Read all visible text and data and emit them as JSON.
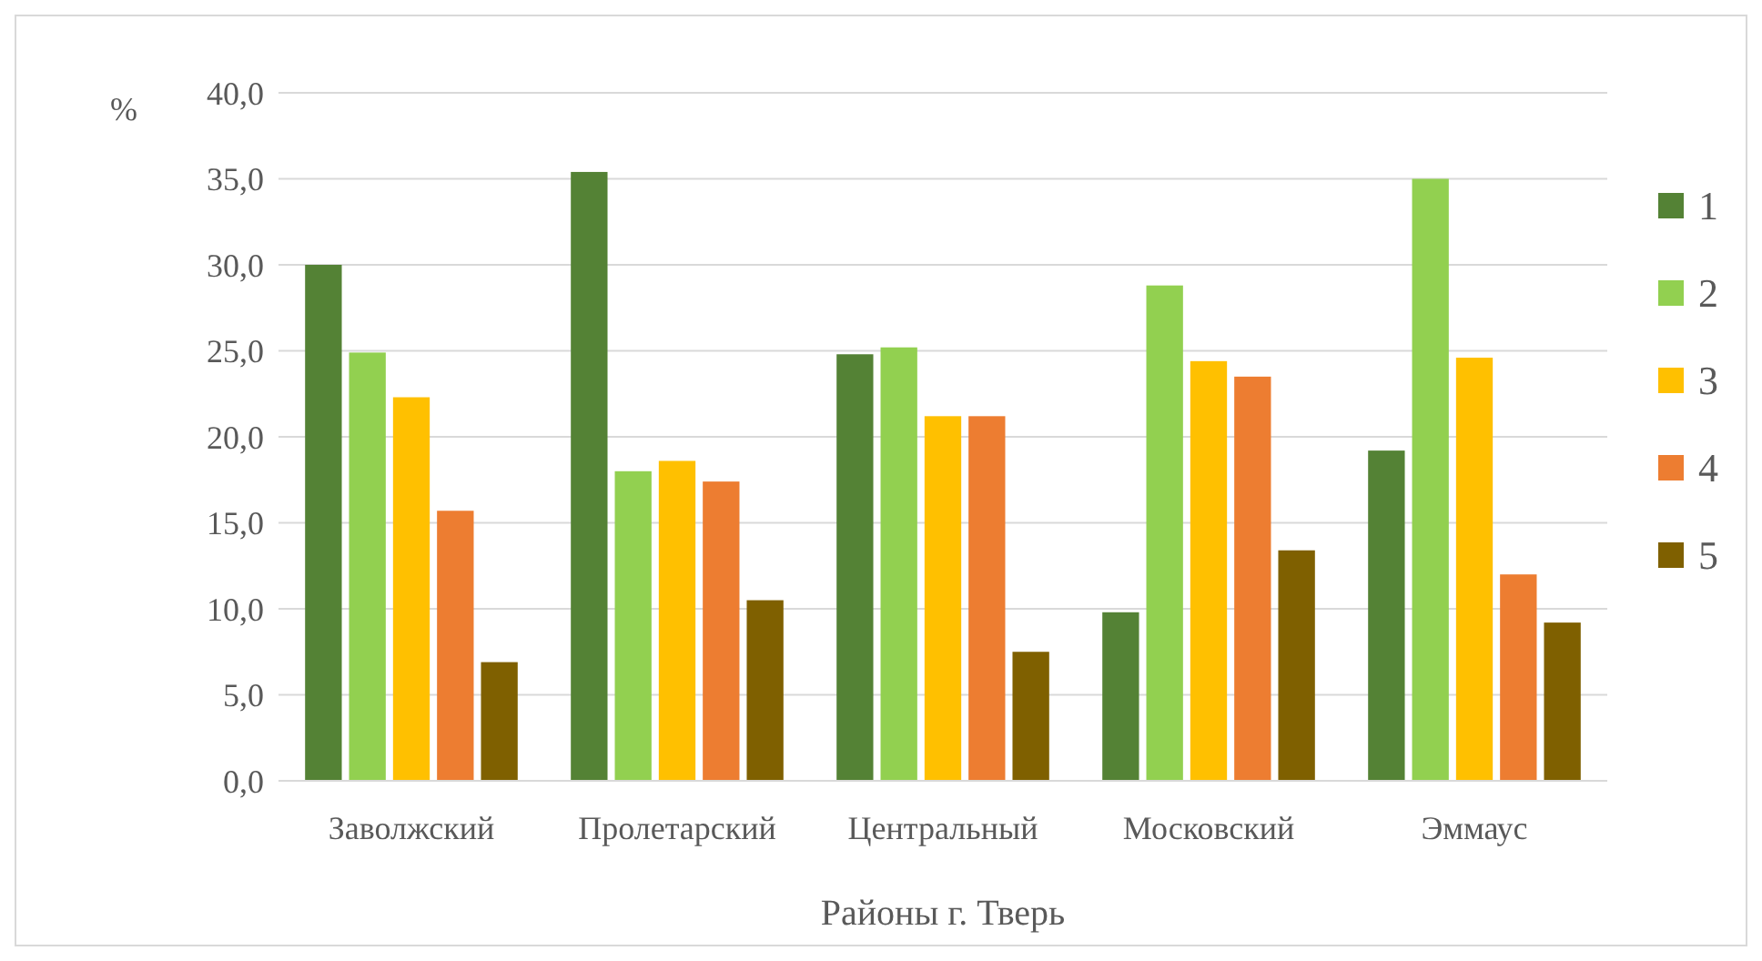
{
  "chart_data": {
    "type": "bar",
    "ylabel": "%",
    "xlabel": "Районы г. Тверь",
    "categories": [
      "Заволжский",
      "Пролетарский",
      "Центральный",
      "Московский",
      "Эммаус"
    ],
    "series": [
      {
        "name": "1",
        "color": "#548235",
        "values": [
          30.0,
          35.4,
          24.8,
          9.8,
          19.2
        ]
      },
      {
        "name": "2",
        "color": "#92d050",
        "values": [
          24.9,
          18.0,
          25.2,
          28.8,
          35.0
        ]
      },
      {
        "name": "3",
        "color": "#ffc000",
        "values": [
          22.3,
          18.6,
          21.2,
          24.4,
          24.6
        ]
      },
      {
        "name": "4",
        "color": "#ed7d31",
        "values": [
          15.7,
          17.4,
          21.2,
          23.5,
          12.0
        ]
      },
      {
        "name": "5",
        "color": "#7f6000",
        "values": [
          6.9,
          10.5,
          7.5,
          13.4,
          9.2
        ]
      }
    ],
    "ylim": [
      0,
      40
    ],
    "yticks": [
      {
        "value": 0,
        "label": "0,0"
      },
      {
        "value": 5,
        "label": "5,0"
      },
      {
        "value": 10,
        "label": "10,0"
      },
      {
        "value": 15,
        "label": "15,0"
      },
      {
        "value": 20,
        "label": "20,0"
      },
      {
        "value": 25,
        "label": "25,0"
      },
      {
        "value": 30,
        "label": "30,0"
      },
      {
        "value": 35,
        "label": "35,0"
      },
      {
        "value": 40,
        "label": "40,0"
      }
    ],
    "grid": "y",
    "legend": "right"
  }
}
